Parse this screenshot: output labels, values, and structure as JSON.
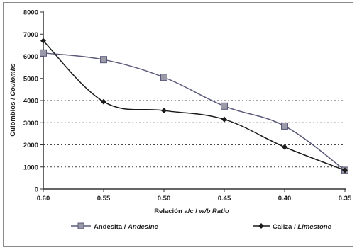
{
  "chart_data": {
    "type": "line",
    "xlabel_es": "Relación a/c / ",
    "xlabel_en": "w/b Ratio",
    "ylabel_es": "Culombios / ",
    "ylabel_en": "Coulombs",
    "x": [
      "0.60",
      "0.55",
      "0.50",
      "0.45",
      "0.40",
      "0.35"
    ],
    "ylim": [
      0,
      8000
    ],
    "yticks": [
      "0",
      "1000",
      "2000",
      "3000",
      "4000",
      "5000",
      "6000",
      "7000",
      "8000"
    ],
    "grid": "horizontal dotted at 1000, 2000, 3000, 4000",
    "legend_placement": "bottom",
    "series": [
      {
        "name_es": "Andesita / ",
        "name_en": "Andesine",
        "marker": "square",
        "color": "#5a5a7a",
        "values": [
          6150,
          5850,
          5050,
          3750,
          2850,
          850
        ]
      },
      {
        "name_es": "Caliza / ",
        "name_en": "Limestone",
        "marker": "diamond",
        "color": "#1a1a1a",
        "values": [
          6700,
          3950,
          3550,
          3150,
          1900,
          850
        ]
      }
    ]
  }
}
